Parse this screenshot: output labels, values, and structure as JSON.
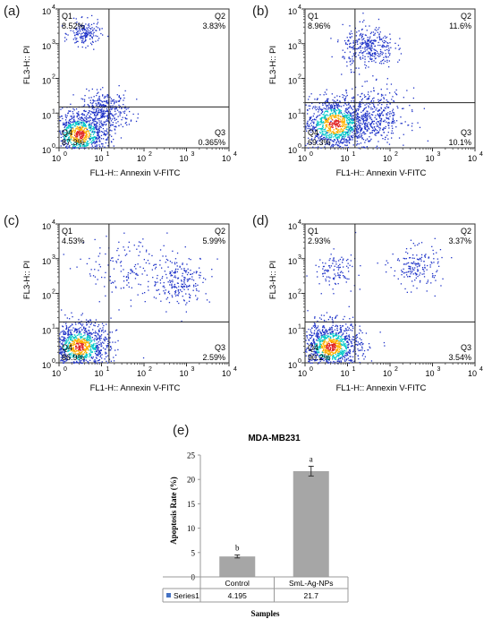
{
  "panel_labels": [
    "(a)",
    "(b)",
    "(c)",
    "(d)",
    "(e)"
  ],
  "chart_data": [
    {
      "type": "scatter",
      "panel": "(a)",
      "xlabel": "FL1-H:: Annexin V-FITC",
      "ylabel": "FL3-H:: PI",
      "scale": "log",
      "xlim": [
        1,
        10000
      ],
      "ylim": [
        1,
        10000
      ],
      "gate": {
        "x": 15,
        "y": 15
      },
      "quadrants": {
        "Q1": "8.52%",
        "Q2": "3.83%",
        "Q3": "0.365%",
        "Q4": "87.3%"
      },
      "quadrant_names": {
        "Q1": "Q1",
        "Q2": "Q2",
        "Q3": "Q3",
        "Q4": "Q4"
      },
      "populations": [
        {
          "name": "viable",
          "x": 3,
          "y": 2.5,
          "spread": 0.35,
          "n": 900
        },
        {
          "name": "diagonal",
          "x": 12,
          "y": 12,
          "spread": 0.28,
          "n": 350
        },
        {
          "name": "Q1-cluster",
          "x": 4,
          "y": 2000,
          "spread": 0.18,
          "n": 170
        }
      ]
    },
    {
      "type": "scatter",
      "panel": "(b)",
      "xlabel": "FL1-H:: Annexin V-FITC",
      "ylabel": "FL3-H:: PI",
      "scale": "log",
      "xlim": [
        1,
        10000
      ],
      "ylim": [
        1,
        10000
      ],
      "gate": {
        "x": 15,
        "y": 20
      },
      "quadrants": {
        "Q1": "8.96%",
        "Q2": "11.6%",
        "Q3": "10.1%",
        "Q4": "69.3%"
      },
      "quadrant_names": {
        "Q1": "Q1",
        "Q2": "Q2",
        "Q3": "Q3",
        "Q4": "Q4"
      },
      "populations": [
        {
          "name": "viable",
          "x": 5,
          "y": 5,
          "spread": 0.4,
          "n": 1100
        },
        {
          "name": "late",
          "x": 30,
          "y": 800,
          "spread": 0.3,
          "n": 350
        },
        {
          "name": "early",
          "x": 40,
          "y": 8,
          "spread": 0.4,
          "n": 400
        }
      ]
    },
    {
      "type": "scatter",
      "panel": "(c)",
      "xlabel": "FL1-H:: Annexin V-FITC",
      "ylabel": "FL3-H:: PI",
      "scale": "log",
      "xlim": [
        1,
        10000
      ],
      "ylim": [
        1,
        10000
      ],
      "gate": {
        "x": 15,
        "y": 15
      },
      "quadrants": {
        "Q1": "4.53%",
        "Q2": "5.99%",
        "Q3": "2.59%",
        "Q4": "86.9%"
      },
      "quadrant_names": {
        "Q1": "Q1",
        "Q2": "Q2",
        "Q3": "Q3",
        "Q4": "Q4"
      },
      "populations": [
        {
          "name": "viable",
          "x": 3,
          "y": 3,
          "spread": 0.35,
          "n": 1000
        },
        {
          "name": "late",
          "x": 700,
          "y": 250,
          "spread": 0.35,
          "n": 220
        },
        {
          "name": "Q1-band",
          "x": 40,
          "y": 500,
          "spread": 0.5,
          "n": 150
        }
      ]
    },
    {
      "type": "scatter",
      "panel": "(d)",
      "xlabel": "FL1-H:: Annexin V-FITC",
      "ylabel": "FL3-H:: PI",
      "scale": "log",
      "xlim": [
        1,
        10000
      ],
      "ylim": [
        1,
        10000
      ],
      "gate": {
        "x": 15,
        "y": 15
      },
      "quadrants": {
        "Q1": "2.93%",
        "Q2": "3.37%",
        "Q3": "3.54%",
        "Q4": "90.2%"
      },
      "quadrant_names": {
        "Q1": "Q1",
        "Q2": "Q2",
        "Q3": "Q3",
        "Q4": "Q4"
      },
      "populations": [
        {
          "name": "viable",
          "x": 4,
          "y": 3,
          "spread": 0.35,
          "n": 1050
        },
        {
          "name": "late",
          "x": 400,
          "y": 600,
          "spread": 0.3,
          "n": 170
        },
        {
          "name": "Q1-cluster",
          "x": 5,
          "y": 500,
          "spread": 0.25,
          "n": 110
        }
      ]
    },
    {
      "type": "bar",
      "panel": "(e)",
      "title": "MDA-MB231",
      "xlabel": "Samples",
      "ylabel": "Apoptosis Rate (%)",
      "categories": [
        "Control",
        "SmL-Ag-NPs"
      ],
      "series": [
        {
          "name": "Series1",
          "values": [
            4.195,
            21.7
          ]
        }
      ],
      "value_labels": [
        "4.195",
        "21.7"
      ],
      "significance": [
        "b",
        "a"
      ],
      "error": [
        0.3,
        1.0
      ],
      "ylim": [
        0,
        25
      ],
      "yticks": [
        0,
        5,
        10,
        15,
        20,
        25
      ],
      "grid": false,
      "legend": "data-table"
    }
  ],
  "colors": {
    "bar": "#a6a6a6",
    "series_marker": "#4472c4",
    "dot_low": "#1f33c8",
    "dot_mid": "#00c8c8",
    "dot_high": "#ffb000",
    "dot_peak": "#e02020"
  }
}
